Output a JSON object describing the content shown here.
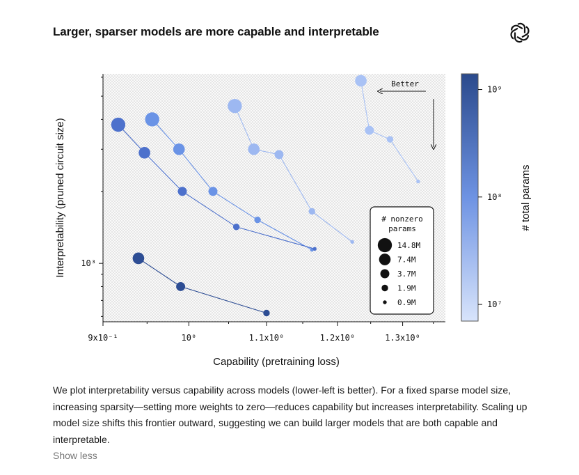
{
  "header": {
    "title": "Larger, sparser models are more capable and interpretable",
    "logo_icon": "openai-logo-icon"
  },
  "chart_data": {
    "type": "scatter",
    "title": "Larger, sparser models are more capable and interpretable",
    "xlabel": "Capability (pretraining loss)",
    "ylabel": "Interpretability (pruned circuit size)",
    "x_scale": "log",
    "y_scale": "log",
    "xlim": [
      0.9,
      1.37
    ],
    "ylim": [
      570,
      6200
    ],
    "x_ticks": [
      {
        "value": 0.9,
        "label": "9x10⁻¹"
      },
      {
        "value": 1.0,
        "label": "10⁰"
      },
      {
        "value": 1.1,
        "label": "1.1x10⁰"
      },
      {
        "value": 1.2,
        "label": "1.2x10⁰"
      },
      {
        "value": 1.3,
        "label": "1.3x10⁰"
      }
    ],
    "y_ticks": [
      {
        "value": 1000,
        "label": "10³"
      }
    ],
    "annotation": "Better",
    "grid": false,
    "series": [
      {
        "total_params": 1700000000,
        "color": "#a9c2f5",
        "points": [
          {
            "x": 1.235,
            "y": 5800,
            "nonzero_params_m": 7.4
          },
          {
            "x": 1.248,
            "y": 3600,
            "nonzero_params_m": 3.7
          },
          {
            "x": 1.28,
            "y": 3300,
            "nonzero_params_m": 1.9
          },
          {
            "x": 1.325,
            "y": 2200,
            "nonzero_params_m": 0.9
          }
        ]
      },
      {
        "total_params": 600000000,
        "color": "#9db8f1",
        "points": [
          {
            "x": 1.058,
            "y": 4550,
            "nonzero_params_m": 14.8
          },
          {
            "x": 1.083,
            "y": 3000,
            "nonzero_params_m": 7.4
          },
          {
            "x": 1.117,
            "y": 2850,
            "nonzero_params_m": 3.7
          },
          {
            "x": 1.163,
            "y": 1650,
            "nonzero_params_m": 1.9
          },
          {
            "x": 1.222,
            "y": 1230,
            "nonzero_params_m": 0.9
          }
        ]
      },
      {
        "total_params": 200000000,
        "color": "#6a93e6",
        "points": [
          {
            "x": 0.956,
            "y": 4000,
            "nonzero_params_m": 14.8
          },
          {
            "x": 0.988,
            "y": 3000,
            "nonzero_params_m": 7.4
          },
          {
            "x": 1.03,
            "y": 2000,
            "nonzero_params_m": 3.7
          },
          {
            "x": 1.088,
            "y": 1520,
            "nonzero_params_m": 1.9
          },
          {
            "x": 1.163,
            "y": 1140,
            "nonzero_params_m": 0.9
          }
        ]
      },
      {
        "total_params": 80000000,
        "color": "#4d71cc",
        "points": [
          {
            "x": 0.917,
            "y": 3800,
            "nonzero_params_m": 14.8
          },
          {
            "x": 0.947,
            "y": 2900,
            "nonzero_params_m": 7.4
          },
          {
            "x": 0.992,
            "y": 2000,
            "nonzero_params_m": 3.7
          },
          {
            "x": 1.06,
            "y": 1420,
            "nonzero_params_m": 1.9
          },
          {
            "x": 1.167,
            "y": 1150,
            "nonzero_params_m": 0.9
          }
        ]
      },
      {
        "total_params": 30000000,
        "color": "#2d4d94",
        "points": [
          {
            "x": 0.94,
            "y": 1050,
            "nonzero_params_m": 7.4
          },
          {
            "x": 0.99,
            "y": 800,
            "nonzero_params_m": 3.7
          },
          {
            "x": 1.1,
            "y": 620,
            "nonzero_params_m": 1.9
          }
        ]
      }
    ],
    "size_legend": {
      "title_lines": [
        "# nonzero",
        "params"
      ],
      "placement": "lower-right",
      "entries": [
        {
          "label": "14.8M",
          "value_m": 14.8
        },
        {
          "label": "7.4M",
          "value_m": 7.4
        },
        {
          "label": "3.7M",
          "value_m": 3.7
        },
        {
          "label": "1.9M",
          "value_m": 1.9
        },
        {
          "label": "0.9M",
          "value_m": 0.9
        }
      ]
    },
    "colorbar": {
      "label": "# total params",
      "scale": "log",
      "range": [
        7000000,
        1400000000
      ],
      "color_low": "#d8e4fb",
      "color_high": "#2b4a8c",
      "ticks": [
        {
          "value": 1000000000,
          "label": "10⁹"
        },
        {
          "value": 100000000,
          "label": "10⁸"
        },
        {
          "value": 10000000,
          "label": "10⁷"
        }
      ]
    }
  },
  "caption": {
    "text": "We plot interpretability versus capability across models (lower-left is better). For a fixed sparse model size, increasing sparsity—setting more weights to zero—reduces capability but increases interpretability. Scaling up model size shifts this frontier outward, suggesting we can build larger models that are both capable and interpretable.",
    "toggle_label": "Show less"
  }
}
